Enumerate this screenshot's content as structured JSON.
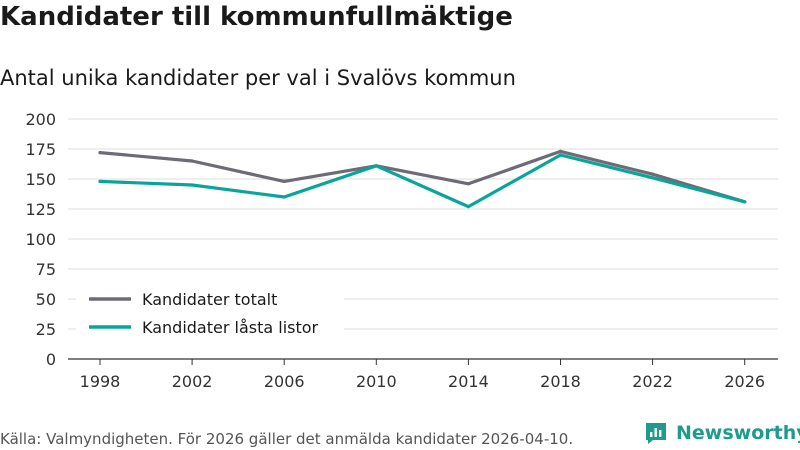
{
  "title": "Kandidater till kommunfullmäktige",
  "subtitle": "Antal unika kandidater per val i Svalövs kommun",
  "footer": "Källa: Valmyndigheten. För 2026 gäller det anmälda kandidater 2026-04-10.",
  "brand": "Newsworthy",
  "chart_data": {
    "type": "line",
    "x": [
      "1998",
      "2002",
      "2006",
      "2010",
      "2014",
      "2018",
      "2022",
      "2026"
    ],
    "series": [
      {
        "name": "Kandidater totalt",
        "color": "#6f6b76",
        "values": [
          172,
          165,
          148,
          161,
          146,
          173,
          154,
          131
        ]
      },
      {
        "name": "Kandidater låsta listor",
        "color": "#0aa59a",
        "values": [
          148,
          145,
          135,
          161,
          127,
          170,
          151,
          131
        ]
      }
    ],
    "yticks": [
      0,
      25,
      50,
      75,
      100,
      125,
      150,
      175,
      200
    ],
    "ylim": [
      0,
      200
    ],
    "legend_position": "bottom-left",
    "grid": true
  }
}
